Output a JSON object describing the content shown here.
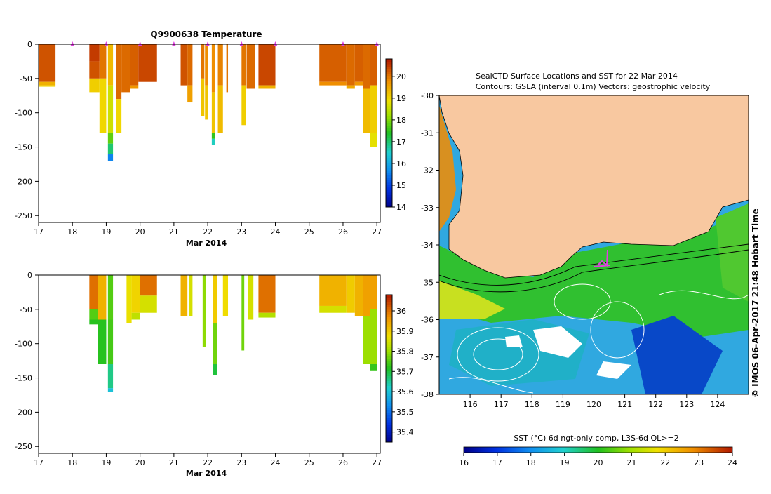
{
  "chart_data": [
    {
      "type": "heatmap",
      "id": "temperature",
      "title": "Q9900638  Temperature",
      "xlabel": "Mar 2014",
      "xlim": [
        17,
        27.1
      ],
      "ylim": [
        -260,
        0
      ],
      "xticks": [
        "17",
        "18",
        "19",
        "20",
        "21",
        "22",
        "23",
        "24",
        "25",
        "26",
        "27"
      ],
      "yticks": [
        "0",
        "-50",
        "-100",
        "-150",
        "-200",
        "-250"
      ],
      "colorbar": {
        "min": 14,
        "max": 20.8,
        "ticks": [
          "14",
          "15",
          "16",
          "17",
          "18",
          "19",
          "20"
        ]
      },
      "profile_markers_days": [
        18,
        19,
        20,
        21,
        22,
        23,
        24,
        26,
        27
      ],
      "profiles": [
        {
          "x0": 17.0,
          "x1": 17.5,
          "segs": [
            [
              0,
              -55,
              20.3
            ],
            [
              -55,
              -60,
              19.4
            ],
            [
              -60,
              -62,
              19.0
            ]
          ]
        },
        {
          "x0": 18.5,
          "x1": 18.8,
          "segs": [
            [
              0,
              -25,
              20.5
            ],
            [
              -25,
              -50,
              20.3
            ],
            [
              -50,
              -70,
              19.1
            ]
          ]
        },
        {
          "x0": 18.8,
          "x1": 19.0,
          "segs": [
            [
              0,
              -50,
              20.0
            ],
            [
              -50,
              -130,
              19.0
            ]
          ]
        },
        {
          "x0": 19.05,
          "x1": 19.2,
          "segs": [
            [
              0,
              -60,
              19.3
            ],
            [
              -60,
              -130,
              18.6
            ],
            [
              -130,
              -145,
              17.8
            ],
            [
              -145,
              -160,
              17.0
            ],
            [
              -160,
              -170,
              15.6
            ]
          ]
        },
        {
          "x0": 19.3,
          "x1": 19.45,
          "segs": [
            [
              0,
              -80,
              20.1
            ],
            [
              -80,
              -130,
              19.0
            ]
          ]
        },
        {
          "x0": 19.45,
          "x1": 19.7,
          "segs": [
            [
              0,
              -70,
              20.1
            ]
          ]
        },
        {
          "x0": 19.7,
          "x1": 19.95,
          "segs": [
            [
              0,
              -60,
              20.2
            ],
            [
              -60,
              -65,
              19.7
            ]
          ]
        },
        {
          "x0": 19.95,
          "x1": 20.5,
          "segs": [
            [
              0,
              -55,
              20.4
            ]
          ]
        },
        {
          "x0": 21.2,
          "x1": 21.4,
          "segs": [
            [
              0,
              -60,
              20.3
            ]
          ]
        },
        {
          "x0": 21.4,
          "x1": 21.55,
          "segs": [
            [
              0,
              -60,
              20.1
            ],
            [
              -60,
              -85,
              19.6
            ]
          ]
        },
        {
          "x0": 21.8,
          "x1": 21.9,
          "segs": [
            [
              0,
              -50,
              20.0
            ],
            [
              -50,
              -105,
              19.2
            ]
          ]
        },
        {
          "x0": 21.92,
          "x1": 22.0,
          "segs": [
            [
              0,
              -60,
              19.8
            ],
            [
              -60,
              -110,
              19.2
            ]
          ]
        },
        {
          "x0": 22.12,
          "x1": 22.22,
          "segs": [
            [
              0,
              -70,
              19.8
            ],
            [
              -70,
              -130,
              19.2
            ],
            [
              -130,
              -138,
              17.5
            ],
            [
              -138,
              -147,
              16.6
            ]
          ]
        },
        {
          "x0": 22.3,
          "x1": 22.45,
          "segs": [
            [
              0,
              -60,
              19.9
            ],
            [
              -60,
              -130,
              19.3
            ]
          ]
        },
        {
          "x0": 22.55,
          "x1": 22.6,
          "segs": [
            [
              0,
              -70,
              20.0
            ]
          ]
        },
        {
          "x0": 23.0,
          "x1": 23.12,
          "segs": [
            [
              0,
              -60,
              20.0
            ],
            [
              -60,
              -118,
              19.1
            ]
          ]
        },
        {
          "x0": 23.15,
          "x1": 23.4,
          "segs": [
            [
              0,
              -65,
              20.1
            ]
          ]
        },
        {
          "x0": 23.5,
          "x1": 24.0,
          "segs": [
            [
              0,
              -60,
              20.4
            ],
            [
              -60,
              -65,
              19.4
            ]
          ]
        },
        {
          "x0": 25.3,
          "x1": 26.1,
          "segs": [
            [
              0,
              -55,
              20.2
            ],
            [
              -55,
              -60,
              19.8
            ]
          ]
        },
        {
          "x0": 26.1,
          "x1": 26.35,
          "segs": [
            [
              0,
              -60,
              20.1
            ],
            [
              -60,
              -65,
              19.5
            ]
          ]
        },
        {
          "x0": 26.35,
          "x1": 26.6,
          "segs": [
            [
              0,
              -55,
              20.2
            ],
            [
              -55,
              -60,
              19.7
            ]
          ]
        },
        {
          "x0": 26.6,
          "x1": 26.8,
          "segs": [
            [
              0,
              -65,
              20.1
            ],
            [
              -65,
              -130,
              19.3
            ]
          ]
        },
        {
          "x0": 26.8,
          "x1": 27.0,
          "segs": [
            [
              0,
              -60,
              20.2
            ],
            [
              -60,
              -130,
              19.1
            ],
            [
              -130,
              -150,
              18.8
            ]
          ]
        }
      ]
    },
    {
      "type": "heatmap",
      "id": "salinity",
      "title": "",
      "xlabel": "Mar 2014",
      "xlim": [
        17,
        27.1
      ],
      "ylim": [
        -260,
        0
      ],
      "xticks": [
        "17",
        "18",
        "19",
        "20",
        "21",
        "22",
        "23",
        "24",
        "25",
        "26",
        "27"
      ],
      "yticks": [
        "0",
        "-50",
        "-100",
        "-150",
        "-200",
        "-250"
      ],
      "colorbar": {
        "min": 35.35,
        "max": 36.08,
        "ticks": [
          "35.4",
          "35.5",
          "35.6",
          "35.7",
          "35.8",
          "35.9",
          "36"
        ]
      },
      "profiles": [
        {
          "x0": 18.5,
          "x1": 18.75,
          "segs": [
            [
              0,
              -50,
              36.0
            ],
            [
              -50,
              -65,
              35.75
            ],
            [
              -65,
              -72,
              35.72
            ]
          ]
        },
        {
          "x0": 18.75,
          "x1": 19.0,
          "segs": [
            [
              0,
              -65,
              35.93
            ],
            [
              -65,
              -130,
              35.72
            ]
          ]
        },
        {
          "x0": 19.05,
          "x1": 19.2,
          "segs": [
            [
              0,
              -65,
              35.75
            ],
            [
              -65,
              -130,
              35.74
            ],
            [
              -130,
              -165,
              35.66
            ],
            [
              -165,
              -170,
              35.6
            ]
          ]
        },
        {
          "x0": 19.6,
          "x1": 19.75,
          "segs": [
            [
              0,
              -70,
              35.87
            ]
          ]
        },
        {
          "x0": 19.75,
          "x1": 20.0,
          "segs": [
            [
              0,
              -55,
              35.89
            ],
            [
              -55,
              -65,
              35.83
            ]
          ]
        },
        {
          "x0": 20.0,
          "x1": 20.5,
          "segs": [
            [
              0,
              -30,
              36.0
            ],
            [
              -30,
              -55,
              35.85
            ]
          ]
        },
        {
          "x0": 21.2,
          "x1": 21.4,
          "segs": [
            [
              0,
              -60,
              35.93
            ]
          ]
        },
        {
          "x0": 21.45,
          "x1": 21.55,
          "segs": [
            [
              0,
              -60,
              35.85
            ]
          ]
        },
        {
          "x0": 21.85,
          "x1": 21.95,
          "segs": [
            [
              0,
              -105,
              35.79
            ]
          ]
        },
        {
          "x0": 22.15,
          "x1": 22.28,
          "segs": [
            [
              0,
              -70,
              35.9
            ],
            [
              -70,
              -130,
              35.77
            ],
            [
              -130,
              -146,
              35.7
            ]
          ]
        },
        {
          "x0": 22.45,
          "x1": 22.6,
          "segs": [
            [
              0,
              -60,
              35.88
            ]
          ]
        },
        {
          "x0": 23.0,
          "x1": 23.08,
          "segs": [
            [
              0,
              -110,
              35.77
            ]
          ]
        },
        {
          "x0": 23.2,
          "x1": 23.35,
          "segs": [
            [
              0,
              -65,
              35.85
            ]
          ]
        },
        {
          "x0": 23.5,
          "x1": 24.0,
          "segs": [
            [
              0,
              -55,
              36.0
            ],
            [
              -55,
              -62,
              35.82
            ]
          ]
        },
        {
          "x0": 25.3,
          "x1": 26.1,
          "segs": [
            [
              0,
              -45,
              35.93
            ],
            [
              -45,
              -55,
              35.85
            ]
          ]
        },
        {
          "x0": 26.1,
          "x1": 26.35,
          "segs": [
            [
              0,
              -55,
              35.9
            ]
          ]
        },
        {
          "x0": 26.35,
          "x1": 26.6,
          "segs": [
            [
              0,
              -60,
              35.93
            ]
          ]
        },
        {
          "x0": 26.6,
          "x1": 26.8,
          "segs": [
            [
              0,
              -60,
              35.95
            ],
            [
              -60,
              -130,
              35.8
            ]
          ]
        },
        {
          "x0": 26.8,
          "x1": 27.0,
          "segs": [
            [
              0,
              -50,
              35.95
            ],
            [
              -50,
              -130,
              35.8
            ],
            [
              -130,
              -140,
              35.73
            ]
          ]
        }
      ]
    },
    {
      "type": "heatmap",
      "id": "sst-map",
      "title_line1": "SealCTD Surface Locations and SST for 22 Mar 2014",
      "title_line2": "Contours: GSLA (interval 0.1m) Vectors: geostrophic velocity",
      "xlim": [
        115,
        125
      ],
      "ylim": [
        -38,
        -30
      ],
      "xticks": [
        "116",
        "117",
        "118",
        "119",
        "120",
        "121",
        "122",
        "123",
        "124"
      ],
      "yticks": [
        "-30",
        "-31",
        "-32",
        "-33",
        "-34",
        "-35",
        "-36",
        "-37",
        "-38"
      ],
      "colorbar_label": "SST (°C) 6d ngt-only comp, L3S-6d QL>=2",
      "colorbar": {
        "min": 16,
        "max": 24,
        "ticks": [
          "16",
          "17",
          "18",
          "19",
          "20",
          "21",
          "22",
          "23",
          "24"
        ]
      },
      "stamp": "© IMOS 06-Apr-2017 21:48 Hobart Time",
      "track_position": [
        120.5,
        -34.4
      ]
    }
  ]
}
